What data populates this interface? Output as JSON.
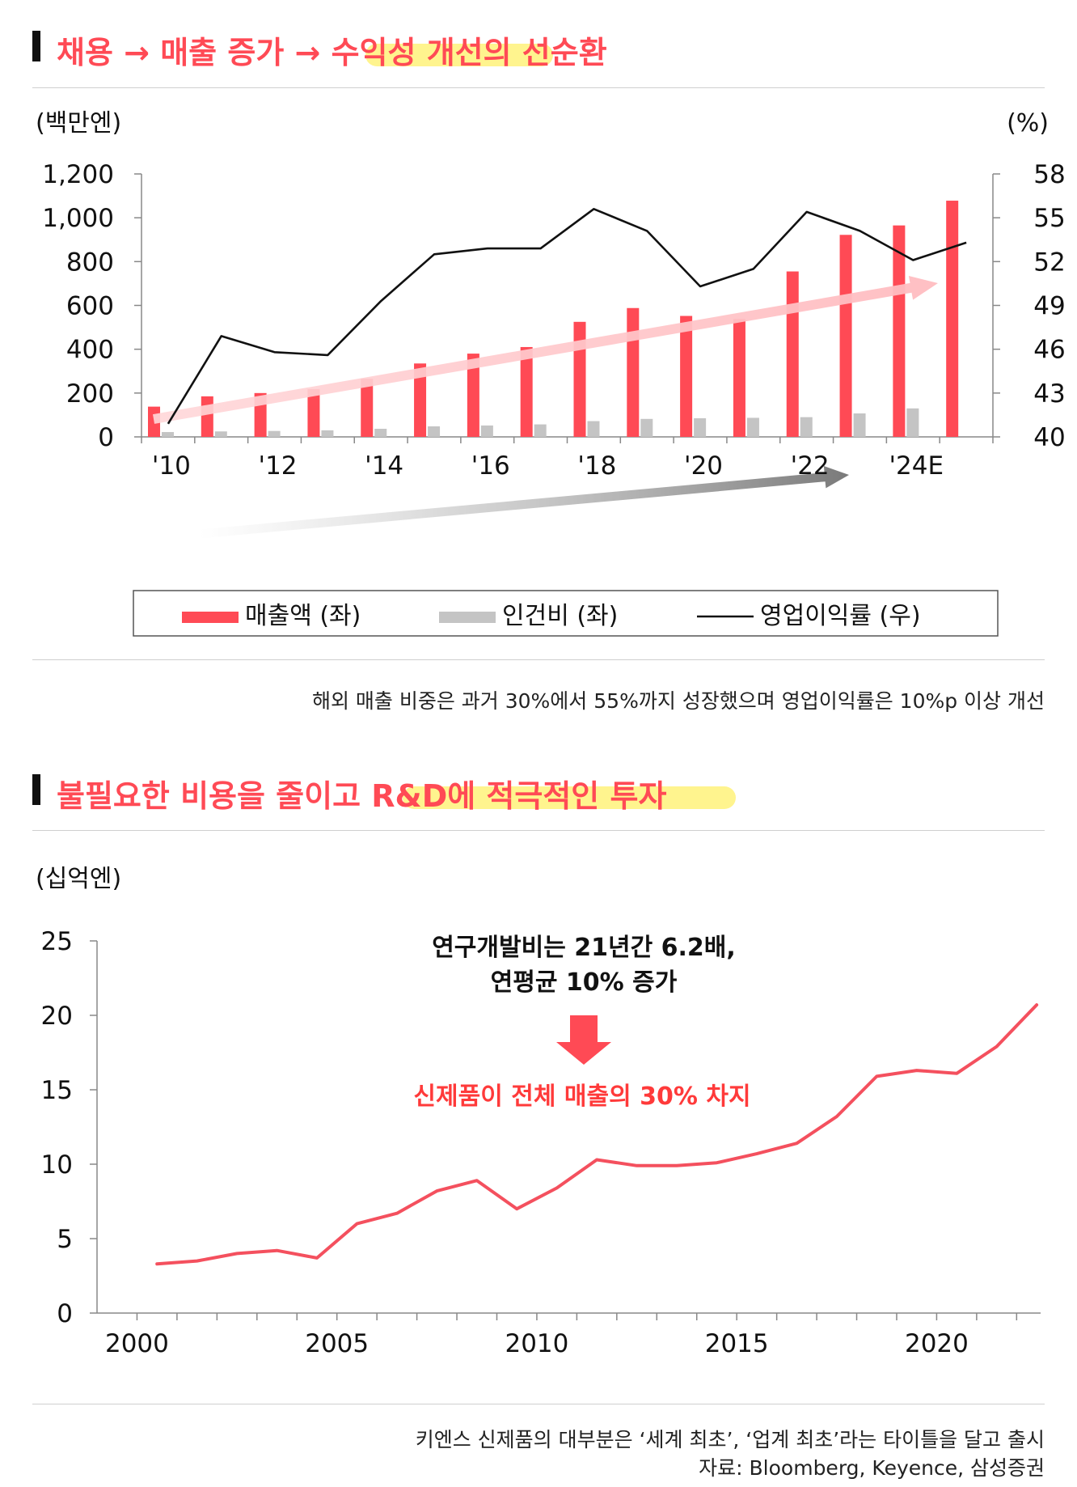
{
  "section1": {
    "title": "채용 → 매출 증가 → 수익성 개선의 선순환",
    "note": "해외 매출 비중은 과거  30%에서 55%까지 성장했으며 영업이익률은 10%p 이상 개선"
  },
  "section2": {
    "title": "불필요한 비용을 줄이고 R&D에 적극적인 투자",
    "note_line1": "키엔스 신제품의 대부분은 ‘세계 최초’, ‘업계 최초’라는 타이틀을 달고 출시",
    "note_line2": "자료: Bloomberg, Keyence, 삼성증권"
  },
  "colors": {
    "accent": "#ff4a55",
    "highlight": "#fff27a",
    "gray_bar": "#c4c4c4",
    "line": "#111111"
  },
  "chart_data": [
    {
      "type": "bar",
      "title": "채용 → 매출 증가 → 수익성 개선의 선순환",
      "left_unit": "(백만엔)",
      "right_unit": "(%)",
      "categories": [
        "2010",
        "2011",
        "2012",
        "2013",
        "2014",
        "2015",
        "2016",
        "2017",
        "2018",
        "2019",
        "2020",
        "2021",
        "2022",
        "2023",
        "2024E",
        "2025"
      ],
      "x_tick_labels": [
        "'10",
        "'12",
        "'14",
        "'16",
        "'18",
        "'20",
        "'22",
        "'24E"
      ],
      "x_tick_index": [
        0,
        2,
        4,
        6,
        8,
        10,
        12,
        14
      ],
      "ylim_left": [
        0,
        1200
      ],
      "y_ticks_left": [
        "0",
        "200",
        "400",
        "600",
        "800",
        "1,000",
        "1,200"
      ],
      "ylim_right": [
        40,
        58
      ],
      "y_ticks_right": [
        "40",
        "43",
        "46",
        "49",
        "52",
        "55",
        "58"
      ],
      "series": [
        {
          "name": "매출액 (좌)",
          "axis": "left",
          "kind": "bar",
          "color": "#ff4a55",
          "values": [
            138,
            185,
            200,
            218,
            265,
            335,
            380,
            410,
            525,
            588,
            552,
            538,
            755,
            922,
            965,
            1078
          ]
        },
        {
          "name": "인건비 (좌)",
          "axis": "left",
          "kind": "bar",
          "color": "#c4c4c4",
          "values": [
            22,
            25,
            27,
            30,
            37,
            48,
            52,
            57,
            72,
            82,
            85,
            87,
            90,
            107,
            130,
            null
          ]
        },
        {
          "name": "영업이익률 (우)",
          "axis": "right",
          "kind": "line",
          "color": "#111111",
          "values": [
            40.9,
            46.9,
            45.8,
            45.6,
            49.3,
            52.5,
            52.9,
            52.9,
            55.6,
            54.1,
            50.3,
            51.5,
            55.4,
            54.1,
            52.1,
            53.3
          ]
        }
      ],
      "legend": [
        "매출액 (좌)",
        "인건비 (좌)",
        "영업이익률 (우)"
      ],
      "legend_position": "bottom",
      "annotations": [
        "trend arrow over revenue",
        "trend arrow over labor cost"
      ]
    },
    {
      "type": "line",
      "title": "불필요한 비용을 줄이고 R&D에 적극적인 투자",
      "ylabel": "(십억엔)",
      "ylim": [
        0,
        25
      ],
      "y_ticks": [
        "0",
        "5",
        "10",
        "15",
        "20",
        "25"
      ],
      "x_ticks": [
        "2000",
        "2005",
        "2010",
        "2015",
        "2020"
      ],
      "x_tick_values": [
        2000,
        2005,
        2010,
        2015,
        2020
      ],
      "x": [
        2000,
        2001,
        2002,
        2003,
        2004,
        2005,
        2006,
        2007,
        2008,
        2009,
        2010,
        2011,
        2012,
        2013,
        2014,
        2015,
        2016,
        2017,
        2018,
        2019,
        2020,
        2021,
        2022
      ],
      "values": [
        3.3,
        3.5,
        4.0,
        4.2,
        3.7,
        6.0,
        6.7,
        8.2,
        8.9,
        7.0,
        8.4,
        10.3,
        9.9,
        9.9,
        10.1,
        10.7,
        11.4,
        13.2,
        15.9,
        16.3,
        16.1,
        17.9,
        20.7
      ],
      "annotation_line1": "연구개발비는 21년간 6.2배,",
      "annotation_line2": "연평균 10% 증가",
      "annotation_result": "신제품이 전체 매출의 30% 차지",
      "color": "#f4505e"
    }
  ]
}
